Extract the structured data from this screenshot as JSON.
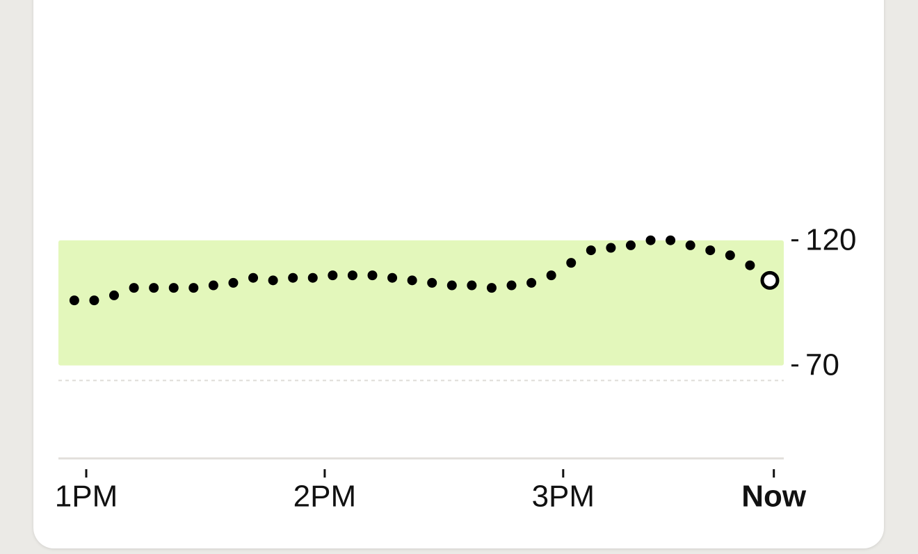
{
  "chart_data": {
    "type": "scatter",
    "x": [
      -3,
      2,
      7,
      12,
      17,
      22,
      27,
      32,
      37,
      42,
      47,
      52,
      57,
      62,
      67,
      72,
      77,
      82,
      87,
      92,
      97,
      102,
      107,
      112,
      117,
      122,
      127,
      132,
      137,
      142,
      147,
      152,
      157,
      162,
      167,
      172
    ],
    "values": [
      96,
      96,
      98,
      101,
      101,
      101,
      101,
      102,
      103,
      105,
      104,
      105,
      105,
      106,
      106,
      106,
      105,
      104,
      103,
      102,
      102,
      101,
      102,
      103,
      106,
      111,
      116,
      117,
      118,
      120,
      120,
      118,
      116,
      114,
      110,
      104
    ],
    "color": "#000000",
    "target_range": [
      70,
      120
    ],
    "target_color": "#e3f7bb",
    "reference_line": 64,
    "xlim": [
      -7,
      175.5
    ],
    "xticks": [
      {
        "value": 0,
        "label": "1PM"
      },
      {
        "value": 60,
        "label": "2PM"
      },
      {
        "value": 120,
        "label": "3PM"
      },
      {
        "value": 173,
        "label": "Now"
      }
    ],
    "ylim": [
      33,
      216
    ],
    "yticks": [
      70,
      120
    ]
  }
}
